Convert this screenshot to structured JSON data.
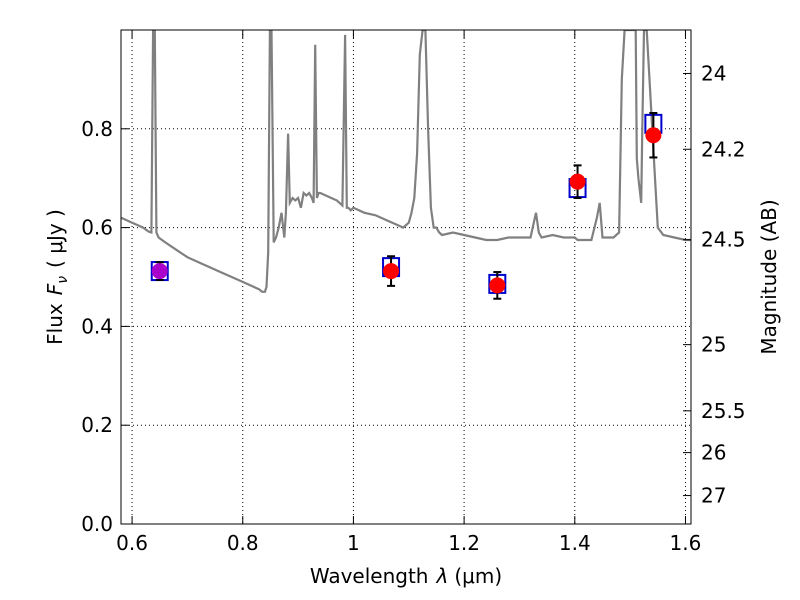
{
  "chart_data": {
    "type": "scatter",
    "title": "",
    "xlabel_text": "Wavelength",
    "xlabel_symbol": "λ",
    "xlabel_unit": "(μm)",
    "ylabel_text": "Flux",
    "ylabel_symbol": "F",
    "ylabel_subscript": "ν",
    "ylabel_unit": "( μJy )",
    "y2label": "Magnitude (AB)",
    "xlim": [
      0.58,
      1.61
    ],
    "ylim": [
      0.0,
      1.0
    ],
    "grid": true,
    "grid_style": "dotted",
    "xticks": [
      0.6,
      0.8,
      1.0,
      1.2,
      1.4,
      1.6
    ],
    "xtick_labels": [
      "0.6",
      "0.8",
      "1",
      "1.2",
      "1.4",
      "1.6"
    ],
    "yticks": [
      0.0,
      0.2,
      0.4,
      0.6,
      0.8
    ],
    "ytick_labels": [
      "0.0",
      "0.2",
      "0.4",
      "0.6",
      "0.8"
    ],
    "y2_ticks": [
      24,
      24.2,
      24.5,
      25,
      25.5,
      26,
      27
    ],
    "y2_tick_labels": [
      "24",
      "24.2",
      "24.5",
      "25",
      "25.5",
      "26",
      "27"
    ],
    "colors": {
      "model": "#808080",
      "observed": "#ff0000",
      "model_band": "#0000cc",
      "error_bar": "#000000",
      "overlap": "#aa00cc",
      "grid": "#000000"
    },
    "series": [
      {
        "kind": "model_spectrum",
        "x": [
          0.58,
          0.6,
          0.61,
          0.62,
          0.63,
          0.635,
          0.638,
          0.641,
          0.644,
          0.648,
          0.66,
          0.68,
          0.7,
          0.72,
          0.74,
          0.76,
          0.78,
          0.8,
          0.82,
          0.83,
          0.835,
          0.84,
          0.843,
          0.846,
          0.849,
          0.852,
          0.856,
          0.86,
          0.865,
          0.87,
          0.875,
          0.878,
          0.882,
          0.885,
          0.89,
          0.895,
          0.9,
          0.905,
          0.91,
          0.915,
          0.92,
          0.925,
          0.928,
          0.931,
          0.934,
          0.937,
          0.94,
          0.95,
          0.96,
          0.97,
          0.98,
          0.985,
          0.988,
          0.991,
          0.995,
          1.0,
          1.02,
          1.04,
          1.06,
          1.08,
          1.09,
          1.1,
          1.105,
          1.11,
          1.115,
          1.12,
          1.125,
          1.128,
          1.13,
          1.135,
          1.14,
          1.145,
          1.15,
          1.155,
          1.16,
          1.18,
          1.2,
          1.22,
          1.24,
          1.26,
          1.28,
          1.3,
          1.32,
          1.33,
          1.335,
          1.34,
          1.36,
          1.38,
          1.4,
          1.405,
          1.41,
          1.42,
          1.43,
          1.44,
          1.445,
          1.45,
          1.47,
          1.48,
          1.485,
          1.49,
          1.5,
          1.51,
          1.512,
          1.515,
          1.52,
          1.522,
          1.525,
          1.53,
          1.535,
          1.545,
          1.55,
          1.56,
          1.58,
          1.6,
          1.61
        ],
        "y": [
          0.62,
          0.61,
          0.605,
          0.6,
          0.592,
          0.59,
          1.0,
          1.0,
          0.59,
          0.58,
          0.57,
          0.555,
          0.54,
          0.53,
          0.52,
          0.51,
          0.5,
          0.49,
          0.48,
          0.475,
          0.47,
          0.47,
          0.48,
          0.55,
          1.0,
          1.0,
          0.57,
          0.58,
          0.6,
          0.63,
          0.58,
          0.63,
          0.79,
          0.65,
          0.66,
          0.655,
          0.66,
          0.64,
          0.67,
          0.665,
          0.67,
          0.66,
          0.65,
          0.97,
          0.66,
          0.67,
          0.67,
          0.665,
          0.66,
          0.655,
          0.645,
          0.99,
          0.64,
          0.64,
          0.635,
          0.64,
          0.63,
          0.625,
          0.615,
          0.605,
          0.6,
          0.61,
          0.63,
          0.66,
          0.75,
          0.95,
          1.0,
          1.0,
          1.0,
          0.8,
          0.64,
          0.6,
          0.6,
          0.59,
          0.585,
          0.59,
          0.585,
          0.58,
          0.575,
          0.575,
          0.58,
          0.58,
          0.58,
          0.63,
          0.59,
          0.58,
          0.585,
          0.58,
          0.58,
          0.575,
          0.575,
          0.575,
          0.575,
          0.62,
          0.65,
          0.58,
          0.58,
          0.59,
          0.9,
          1.0,
          1.0,
          1.0,
          0.74,
          0.7,
          0.65,
          0.8,
          1.0,
          1.0,
          0.9,
          0.7,
          0.6,
          0.585,
          0.58,
          0.575,
          0.575
        ]
      },
      {
        "kind": "model_bands",
        "x": [
          0.65,
          1.068,
          1.26,
          1.405,
          1.542
        ],
        "y": [
          0.512,
          0.52,
          0.486,
          0.68,
          0.81
        ]
      },
      {
        "kind": "observed",
        "x": [
          0.65,
          1.068,
          1.26,
          1.405,
          1.542
        ],
        "y": [
          0.512,
          0.512,
          0.483,
          0.693,
          0.787
        ],
        "yerr": [
          0.018,
          0.03,
          0.027,
          0.033,
          0.045
        ]
      }
    ]
  }
}
